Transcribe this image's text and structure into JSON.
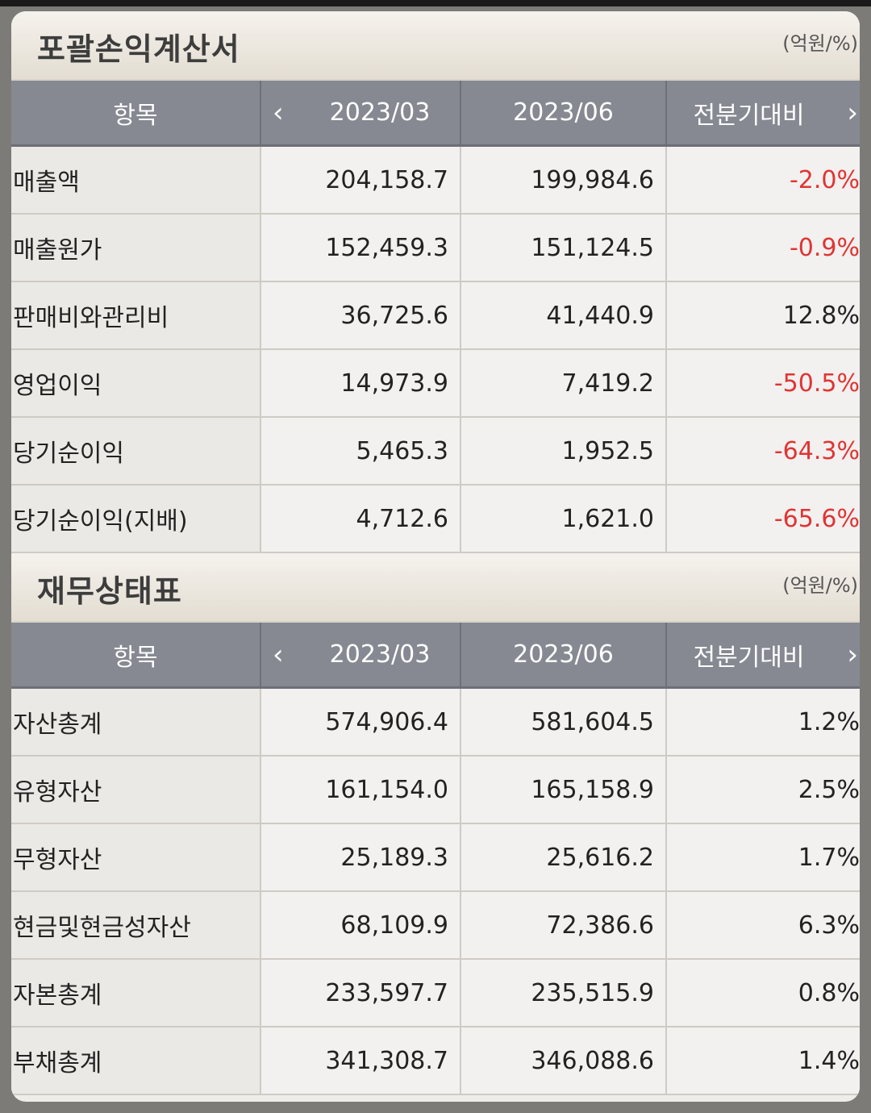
{
  "sections": [
    {
      "title": "포괄손익계산서",
      "unit": "(억원/%)",
      "headers": [
        "항목",
        "2023/03",
        "2023/06",
        "전분기대비"
      ],
      "rows": [
        {
          "item": "매출액",
          "q1": "204,158.7",
          "q2": "199,984.6",
          "change": "-2.0%",
          "negative": true
        },
        {
          "item": "매출원가",
          "q1": "152,459.3",
          "q2": "151,124.5",
          "change": "-0.9%",
          "negative": true
        },
        {
          "item": "판매비와관리비",
          "q1": "36,725.6",
          "q2": "41,440.9",
          "change": "12.8%",
          "negative": false
        },
        {
          "item": "영업이익",
          "q1": "14,973.9",
          "q2": "7,419.2",
          "change": "-50.5%",
          "negative": true
        },
        {
          "item": "당기순이익",
          "q1": "5,465.3",
          "q2": "1,952.5",
          "change": "-64.3%",
          "negative": true
        },
        {
          "item": "당기순이익(지배)",
          "q1": "4,712.6",
          "q2": "1,621.0",
          "change": "-65.6%",
          "negative": true
        }
      ]
    },
    {
      "title": "재무상태표",
      "unit": "(억원/%)",
      "headers": [
        "항목",
        "2023/03",
        "2023/06",
        "전분기대비"
      ],
      "rows": [
        {
          "item": "자산총계",
          "q1": "574,906.4",
          "q2": "581,604.5",
          "change": "1.2%",
          "negative": false
        },
        {
          "item": "유형자산",
          "q1": "161,154.0",
          "q2": "165,158.9",
          "change": "2.5%",
          "negative": false
        },
        {
          "item": "무형자산",
          "q1": "25,189.3",
          "q2": "25,616.2",
          "change": "1.7%",
          "negative": false
        },
        {
          "item": "현금및현금성자산",
          "q1": "68,109.9",
          "q2": "72,386.6",
          "change": "6.3%",
          "negative": false
        },
        {
          "item": "자본총계",
          "q1": "233,597.7",
          "q2": "235,515.9",
          "change": "0.8%",
          "negative": false
        },
        {
          "item": "부채총계",
          "q1": "341,308.7",
          "q2": "346,088.6",
          "change": "1.4%",
          "negative": false
        }
      ]
    }
  ],
  "icons": {
    "prev": "chevron-left-icon",
    "next": "chevron-right-icon"
  },
  "colors": {
    "negative": "#e03434",
    "header_bg": "#868992"
  }
}
